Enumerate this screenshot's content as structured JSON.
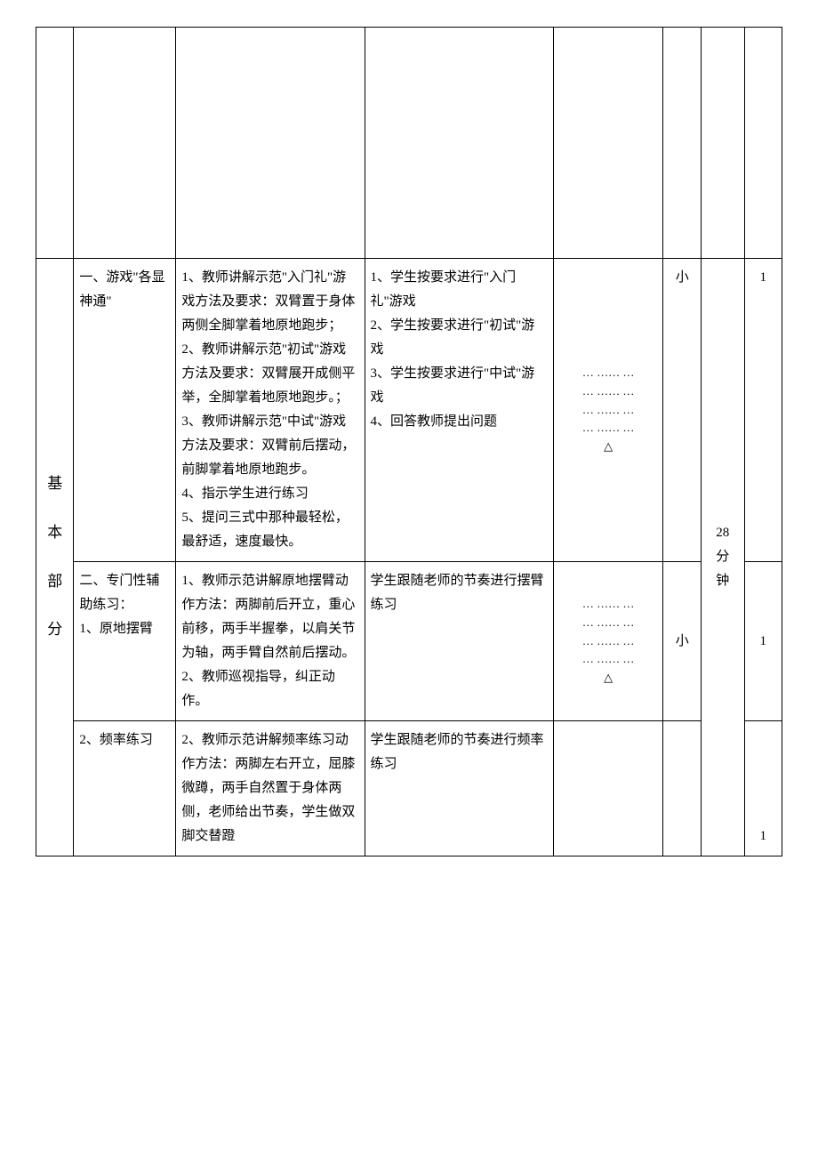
{
  "section_label_chars": [
    "基",
    "本",
    "部",
    "分"
  ],
  "row1": {
    "activity": "一、游戏\"各显神通\"",
    "teacher": "1、教师讲解示范\"入门礼\"游戏方法及要求：双臂置于身体两侧全脚掌着地原地跑步；\n2、教师讲解示范\"初试\"游戏方法及要求：双臂展开成侧平举，全脚掌着地原地跑步。；\n3、教师讲解示范\"中试\"游戏方法及要求：双臂前后摆动，前脚掌着地原地跑步。\n4、指示学生进行练习\n5、提问三式中那种最轻松，最舒适，速度最快。",
    "student": "1、学生按要求进行\"入门礼\"游戏\n2、学生按要求进行\"初试\"游戏\n3、学生按要求进行\"中试\"游戏\n4、回答教师提出问题",
    "diagram_top": [
      "… …… …",
      "… …… …",
      "… …… …",
      "… …… …",
      "△"
    ],
    "intensity": "小",
    "reps": "1"
  },
  "row2": {
    "activity": "二、专门性辅助练习：\n1、原地摆臂",
    "teacher": "1、教师示范讲解原地摆臂动作方法：两脚前后开立，重心前移，两手半握拳，以肩关节为轴，两手臂自然前后摆动。\n2、教师巡视指导，纠正动作。",
    "student": "学生跟随老师的节奏进行摆臂练习",
    "diagram": [
      "… …… …",
      "… …… …",
      "… …… …",
      "… …… …",
      "△"
    ],
    "intensity": "小",
    "time": "28\n分\n钟",
    "reps": "1"
  },
  "row3": {
    "activity": "2、频率练习",
    "teacher": "2、教师示范讲解频率练习动作方法：两脚左右开立，屈膝微蹲，两手自然置于身体两侧，老师给出节奏，学生做双脚交替蹬",
    "student": "学生跟随老师的节奏进行频率练习",
    "reps": "1"
  }
}
